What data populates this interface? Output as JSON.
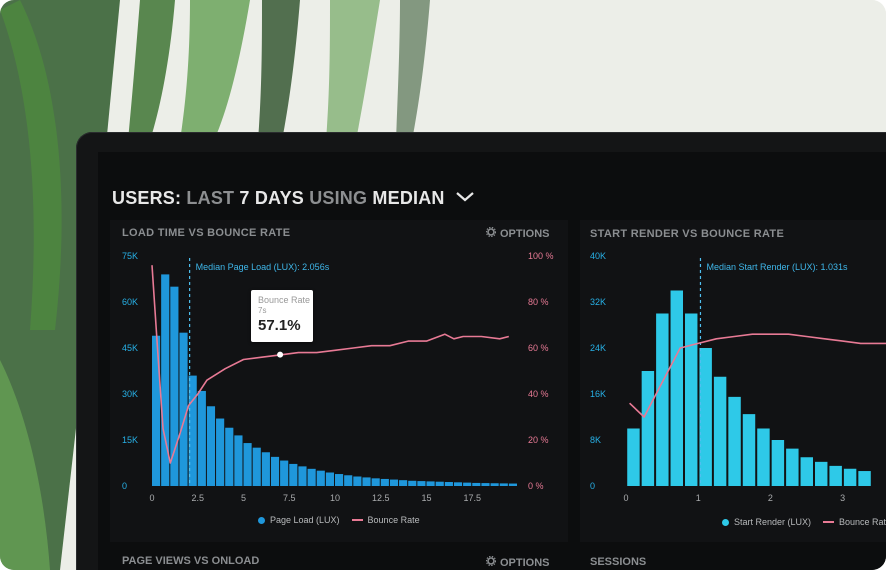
{
  "header": {
    "users_label": "USERS:",
    "range_a": "LAST",
    "range_b": "7 DAYS",
    "using": "USING",
    "stat": "MEDIAN"
  },
  "panels": [
    {
      "title": "LOAD TIME VS BOUNCE RATE",
      "options_label": "OPTIONS",
      "median_annotation": "Median Page Load (LUX): 2.056s",
      "legend": {
        "bars": "Page Load (LUX)",
        "line": "Bounce Rate"
      },
      "tooltip": {
        "label": "Bounce Rate",
        "x": "7s",
        "value": "57.1%"
      }
    },
    {
      "title": "START RENDER VS BOUNCE RATE",
      "median_annotation": "Median Start Render (LUX): 1.031s",
      "legend": {
        "bars": "Start Render (LUX)",
        "line": "Bounce Rate"
      }
    }
  ],
  "bottom_panels": [
    {
      "title": "PAGE VIEWS VS ONLOAD",
      "options_label": "OPTIONS"
    },
    {
      "title": "SESSIONS"
    }
  ],
  "colors": {
    "bar_blue": "#1f97db",
    "bar_cyan": "#2ec9e8",
    "bounce_line": "#e87a95",
    "median_line": "#4fc0f0"
  },
  "chart_data": [
    {
      "type": "bar",
      "title": "LOAD TIME VS BOUNCE RATE",
      "y_ticks": [
        "0",
        "15K",
        "30K",
        "45K",
        "60K",
        "75K"
      ],
      "y2_ticks": [
        "0 %",
        "20 %",
        "40 %",
        "60 %",
        "80 %",
        "100 %"
      ],
      "x_ticks": [
        "0",
        "2.5",
        "5",
        "7.5",
        "10",
        "12.5",
        "15",
        "17.5"
      ],
      "ylim": [
        0,
        75000
      ],
      "y2lim": [
        0,
        100
      ],
      "xlim": [
        0,
        20
      ],
      "median_x": 2.056,
      "series": [
        {
          "name": "Page Load (LUX)",
          "x": [
            0,
            0.5,
            1,
            1.5,
            2,
            2.5,
            3,
            3.5,
            4,
            4.5,
            5,
            5.5,
            6,
            6.5,
            7,
            7.5,
            8,
            8.5,
            9,
            9.5,
            10,
            10.5,
            11,
            11.5,
            12,
            12.5,
            13,
            13.5,
            14,
            14.5,
            15,
            15.5,
            16,
            16.5,
            17,
            17.5,
            18,
            18.5,
            19,
            19.5
          ],
          "values": [
            49000,
            69000,
            65000,
            50000,
            36000,
            31000,
            26000,
            22000,
            19000,
            16500,
            14000,
            12500,
            11000,
            9500,
            8300,
            7200,
            6400,
            5600,
            5000,
            4400,
            3900,
            3500,
            3100,
            2800,
            2500,
            2300,
            2100,
            1900,
            1700,
            1600,
            1500,
            1400,
            1300,
            1200,
            1100,
            1000,
            950,
            900,
            850,
            800
          ]
        },
        {
          "name": "Bounce Rate",
          "x": [
            0,
            0.3,
            0.6,
            1,
            1.5,
            2,
            2.5,
            3,
            4,
            5,
            6,
            7,
            8,
            9,
            10,
            11,
            12,
            13,
            14,
            15,
            16,
            16.5,
            17,
            18,
            19,
            19.5
          ],
          "values": [
            96,
            60,
            25,
            10,
            22,
            35,
            40,
            46,
            51,
            55,
            56,
            57,
            58,
            58,
            59,
            60,
            61,
            61,
            63,
            63,
            66,
            64,
            65,
            65,
            64,
            65
          ]
        }
      ]
    },
    {
      "type": "bar",
      "title": "START RENDER VS BOUNCE RATE",
      "y_ticks": [
        "0",
        "8K",
        "16K",
        "24K",
        "32K",
        "40K"
      ],
      "x_ticks": [
        "0",
        "1",
        "2",
        "3"
      ],
      "ylim": [
        0,
        40000
      ],
      "xlim": [
        0,
        3.6
      ],
      "median_x": 1.031,
      "series": [
        {
          "name": "Start Render (LUX)",
          "x": [
            0.1,
            0.3,
            0.5,
            0.7,
            0.9,
            1.1,
            1.3,
            1.5,
            1.7,
            1.9,
            2.1,
            2.3,
            2.5,
            2.7,
            2.9,
            3.1,
            3.3
          ],
          "values": [
            10000,
            20000,
            30000,
            34000,
            30000,
            24000,
            19000,
            15500,
            12500,
            10000,
            8000,
            6500,
            5000,
            4200,
            3500,
            3000,
            2600
          ]
        },
        {
          "name": "Bounce Rate",
          "x": [
            0.05,
            0.25,
            0.5,
            0.75,
            1,
            1.25,
            1.5,
            1.75,
            2,
            2.25,
            2.5,
            2.75,
            3,
            3.25,
            3.6
          ],
          "values": [
            36,
            30,
            45,
            60,
            62,
            64,
            65,
            66,
            66,
            66,
            65,
            64,
            63,
            62,
            62
          ]
        }
      ]
    }
  ]
}
